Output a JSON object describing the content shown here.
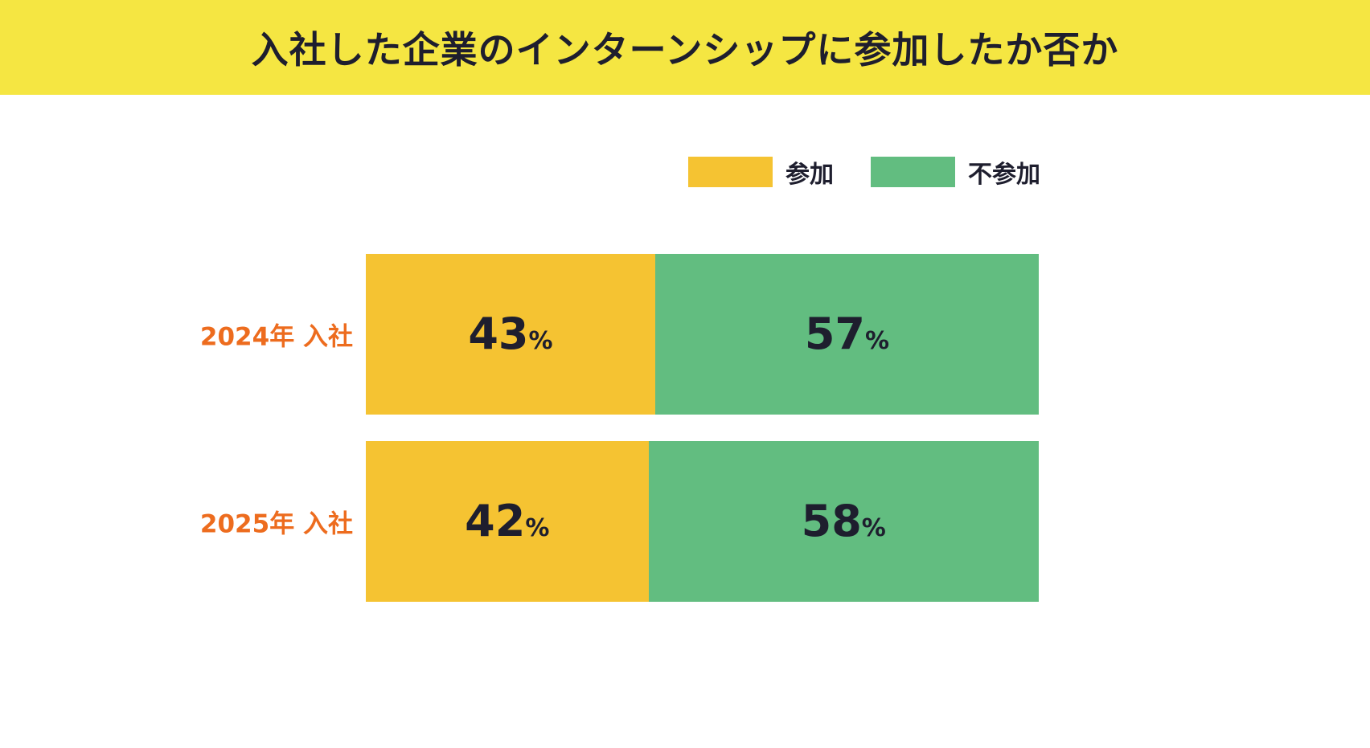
{
  "title": "入社した企業のインターンシップに参加したか否か",
  "colors": {
    "banner": "#F5E642",
    "text": "#1E1E2E",
    "category_label": "#ED6C1E",
    "participate": "#F5C332",
    "not_participate": "#62BD80"
  },
  "legend": [
    {
      "label": "参加",
      "color": "#F5C332"
    },
    {
      "label": "不参加",
      "color": "#62BD80"
    }
  ],
  "chart_data": {
    "type": "bar",
    "orientation": "horizontal",
    "stacked": true,
    "title": "入社した企業のインターンシップに参加したか否か",
    "categories": [
      "2024年 入社",
      "2025年 入社"
    ],
    "series": [
      {
        "key": "participate",
        "name": "参加",
        "color": "#F5C332",
        "values": [
          43,
          42
        ]
      },
      {
        "key": "not-participate",
        "name": "不参加",
        "color": "#62BD80",
        "values": [
          57,
          58
        ]
      }
    ],
    "value_suffix": "%",
    "xlim": [
      0,
      100
    ],
    "grid": false,
    "legend_position": "top-right"
  }
}
